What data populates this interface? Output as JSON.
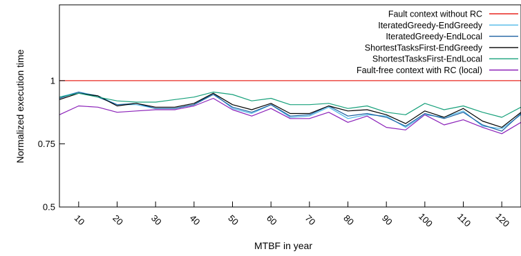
{
  "chart_data": {
    "type": "line",
    "title": "",
    "xlabel": "MTBF in year",
    "ylabel": "Normalized execution time",
    "xlim": [
      5,
      125
    ],
    "ylim": [
      0.5,
      1.3
    ],
    "xticks": [
      10,
      20,
      30,
      40,
      50,
      60,
      70,
      80,
      90,
      100,
      110,
      120
    ],
    "yticks": [
      {
        "value": 0.5,
        "label": "0.5"
      },
      {
        "value": 0.75,
        "label": "0.75"
      },
      {
        "value": 1,
        "label": "1"
      }
    ],
    "grid": false,
    "legend_position": "top-right",
    "x": [
      5,
      10,
      15,
      20,
      25,
      30,
      35,
      40,
      45,
      50,
      55,
      60,
      65,
      70,
      75,
      80,
      85,
      90,
      95,
      100,
      105,
      110,
      115,
      120,
      125
    ],
    "series": [
      {
        "name": "Fault context without RC",
        "color": "#e8251f",
        "values": [
          1,
          1,
          1,
          1,
          1,
          1,
          1,
          1,
          1,
          1,
          1,
          1,
          1,
          1,
          1,
          1,
          1,
          1,
          1,
          1,
          1,
          1,
          1,
          1,
          1
        ]
      },
      {
        "name": "IteratedGreedy-EndGreedy",
        "color": "#4fb8e8",
        "values": [
          0.935,
          0.955,
          0.94,
          0.905,
          0.905,
          0.89,
          0.89,
          0.905,
          0.95,
          0.89,
          0.87,
          0.905,
          0.855,
          0.86,
          0.895,
          0.85,
          0.865,
          0.86,
          0.815,
          0.865,
          0.855,
          0.88,
          0.82,
          0.81,
          0.865
        ]
      },
      {
        "name": "IteratedGreedy-EndLocal",
        "color": "#1a5fa0",
        "values": [
          0.93,
          0.955,
          0.935,
          0.905,
          0.91,
          0.89,
          0.89,
          0.905,
          0.945,
          0.895,
          0.875,
          0.905,
          0.86,
          0.865,
          0.9,
          0.86,
          0.87,
          0.855,
          0.82,
          0.87,
          0.85,
          0.875,
          0.825,
          0.8,
          0.87
        ]
      },
      {
        "name": "ShortestTasksFirst-EndGreedy",
        "color": "#000000",
        "values": [
          0.925,
          0.95,
          0.94,
          0.9,
          0.91,
          0.895,
          0.895,
          0.91,
          0.95,
          0.905,
          0.885,
          0.91,
          0.87,
          0.87,
          0.9,
          0.88,
          0.885,
          0.865,
          0.83,
          0.88,
          0.855,
          0.89,
          0.84,
          0.815,
          0.875
        ]
      },
      {
        "name": "ShortestTasksFirst-EndLocal",
        "color": "#16a07a",
        "values": [
          0.935,
          0.95,
          0.935,
          0.92,
          0.915,
          0.915,
          0.925,
          0.935,
          0.955,
          0.945,
          0.92,
          0.93,
          0.905,
          0.905,
          0.91,
          0.89,
          0.9,
          0.875,
          0.865,
          0.91,
          0.885,
          0.9,
          0.875,
          0.855,
          0.895
        ]
      },
      {
        "name": "Fault-free context with RC (local)",
        "color": "#8a1fb8",
        "values": [
          0.865,
          0.9,
          0.895,
          0.875,
          0.88,
          0.885,
          0.885,
          0.9,
          0.93,
          0.885,
          0.86,
          0.89,
          0.85,
          0.85,
          0.875,
          0.835,
          0.86,
          0.815,
          0.805,
          0.865,
          0.825,
          0.845,
          0.815,
          0.79,
          0.835
        ]
      }
    ]
  }
}
